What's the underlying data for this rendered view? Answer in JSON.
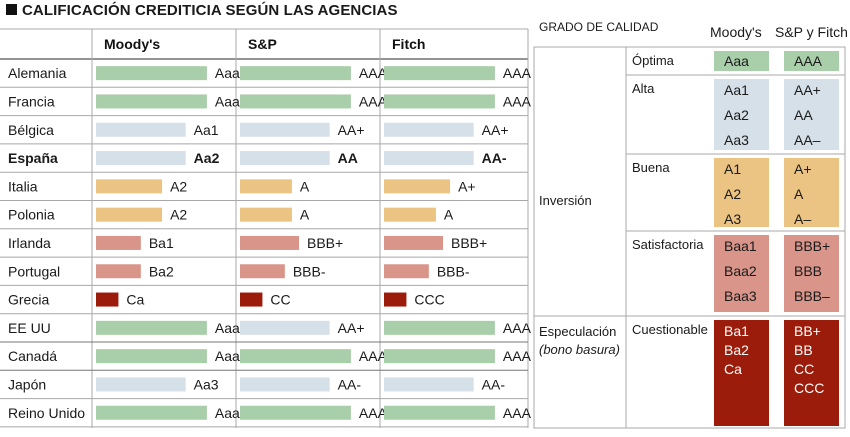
{
  "title": "CALIFICACIÓN CREDITICIA SEGÚN LAS AGENCIAS",
  "colors": {
    "AAA": "#a9cfaa",
    "AA": "#d6e0e8",
    "A": "#ebc383",
    "BBB": "#d9958a",
    "C": "#9b1c0a",
    "grid": "#a8a8a8"
  },
  "chart_data": {
    "type": "table",
    "title": "CALIFICACIÓN CREDITICIA SEGÚN LAS AGENCIAS",
    "columns": [
      "Moody's",
      "S&P",
      "Fitch"
    ],
    "rows": [
      {
        "country": "Alemania",
        "bold": false,
        "ratings": [
          "Aaa",
          "AAA",
          "AAA"
        ],
        "tiers": [
          "AAA",
          "AAA",
          "AAA"
        ],
        "bar_scores": [
          0.94,
          0.94,
          0.94
        ]
      },
      {
        "country": "Francia",
        "bold": false,
        "ratings": [
          "Aaa",
          "AAA",
          "AAA"
        ],
        "tiers": [
          "AAA",
          "AAA",
          "AAA"
        ],
        "bar_scores": [
          0.94,
          0.94,
          0.94
        ]
      },
      {
        "country": "Bélgica",
        "bold": false,
        "ratings": [
          "Aa1",
          "AA+",
          "AA+"
        ],
        "tiers": [
          "AA",
          "AA",
          "AA"
        ],
        "bar_scores": [
          0.76,
          0.76,
          0.76
        ]
      },
      {
        "country": "España",
        "bold": true,
        "ratings": [
          "Aa2",
          "AA",
          "AA-"
        ],
        "tiers": [
          "AA",
          "AA",
          "AA"
        ],
        "bar_scores": [
          0.76,
          0.76,
          0.76
        ]
      },
      {
        "country": "Italia",
        "bold": false,
        "ratings": [
          "A2",
          "A",
          "A+"
        ],
        "tiers": [
          "A",
          "A",
          "A"
        ],
        "bar_scores": [
          0.56,
          0.44,
          0.56
        ]
      },
      {
        "country": "Polonia",
        "bold": false,
        "ratings": [
          "A2",
          "A",
          "A"
        ],
        "tiers": [
          "A",
          "A",
          "A"
        ],
        "bar_scores": [
          0.56,
          0.44,
          0.44
        ]
      },
      {
        "country": "Irlanda",
        "bold": false,
        "ratings": [
          "Ba1",
          "BBB+",
          "BBB+"
        ],
        "tiers": [
          "BBB",
          "BBB",
          "BBB"
        ],
        "bar_scores": [
          0.38,
          0.5,
          0.5
        ]
      },
      {
        "country": "Portugal",
        "bold": false,
        "ratings": [
          "Ba2",
          "BBB-",
          "BBB-"
        ],
        "tiers": [
          "BBB",
          "BBB",
          "BBB"
        ],
        "bar_scores": [
          0.38,
          0.38,
          0.38
        ]
      },
      {
        "country": "Grecia",
        "bold": false,
        "ratings": [
          "Ca",
          "CC",
          "CCC"
        ],
        "tiers": [
          "C",
          "C",
          "C"
        ],
        "bar_scores": [
          0.19,
          0.19,
          0.19
        ]
      },
      {
        "country": "EE UU",
        "bold": false,
        "ratings": [
          "Aaa",
          "AA+",
          "AAA"
        ],
        "tiers": [
          "AAA",
          "AA",
          "AAA"
        ],
        "bar_scores": [
          0.94,
          0.76,
          0.94
        ]
      },
      {
        "country": "Canadá",
        "bold": false,
        "ratings": [
          "Aaa",
          "AAA",
          "AAA"
        ],
        "tiers": [
          "AAA",
          "AAA",
          "AAA"
        ],
        "bar_scores": [
          0.94,
          0.94,
          0.94
        ]
      },
      {
        "country": "Japón",
        "bold": false,
        "ratings": [
          "Aa3",
          "AA-",
          "AA-"
        ],
        "tiers": [
          "AA",
          "AA",
          "AA"
        ],
        "bar_scores": [
          0.76,
          0.76,
          0.76
        ]
      },
      {
        "country": "Reino Unido",
        "bold": false,
        "ratings": [
          "Aaa",
          "AAA",
          "AAA"
        ],
        "tiers": [
          "AAA",
          "AAA",
          "AAA"
        ],
        "bar_scores": [
          0.94,
          0.94,
          0.94
        ]
      }
    ]
  },
  "legend": {
    "header": "GRADO DE CALIDAD",
    "agency_moodys": "Moody's",
    "agency_sp_fitch": "S&P y Fitch",
    "groups": [
      {
        "label": "Inversión",
        "label_sub": ""
      },
      {
        "label": "Especulación",
        "label_sub": "(bono basura)"
      }
    ],
    "grades": [
      {
        "name": "Óptima",
        "tier": "AAA",
        "moodys": [
          "Aaa"
        ],
        "sp": [
          "AAA"
        ]
      },
      {
        "name": "Alta",
        "tier": "AA",
        "moodys": [
          "Aa1",
          "Aa2",
          "Aa3"
        ],
        "sp": [
          "AA+",
          "AA",
          "AA–"
        ]
      },
      {
        "name": "Buena",
        "tier": "A",
        "moodys": [
          "A1",
          "A2",
          "A3"
        ],
        "sp": [
          "A+",
          "A",
          "A–"
        ]
      },
      {
        "name": "Satisfactoria",
        "tier": "BBB",
        "moodys": [
          "Baa1",
          "Baa2",
          "Baa3"
        ],
        "sp": [
          "BBB+",
          "BBB",
          "BBB–"
        ]
      },
      {
        "name": "Cuestionable",
        "tier": "C",
        "moodys": [
          "Ba1",
          "Ba2",
          "Ca"
        ],
        "sp": [
          "BB+",
          "BB",
          "CC",
          "CCC"
        ]
      }
    ]
  }
}
